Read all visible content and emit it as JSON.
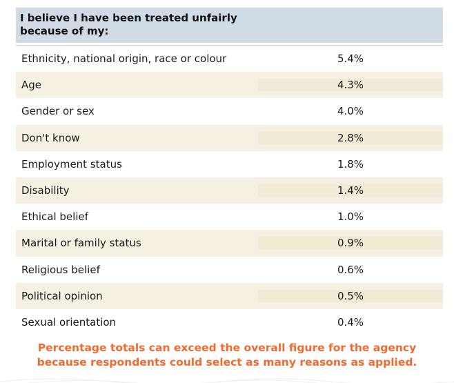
{
  "header": {
    "line1": "I believe I have been treated unfairly",
    "line2": "because of my:"
  },
  "rows": [
    {
      "label": "Ethnicity, national origin, race or colour",
      "value": "5.4%"
    },
    {
      "label": "Age",
      "value": "4.3%"
    },
    {
      "label": "Gender or sex",
      "value": "4.0%"
    },
    {
      "label": "Don't know",
      "value": "2.8%"
    },
    {
      "label": "Employment status",
      "value": "1.8%"
    },
    {
      "label": "Disability",
      "value": "1.4%"
    },
    {
      "label": "Ethical belief",
      "value": "1.0%"
    },
    {
      "label": "Marital or family status",
      "value": "0.9%"
    },
    {
      "label": "Religious belief",
      "value": "0.6%"
    },
    {
      "label": "Political opinion",
      "value": "0.5%"
    },
    {
      "label": "Sexual orientation",
      "value": "0.4%"
    }
  ],
  "note": {
    "line1": "Percentage totals can exceed the overall figure for the agency",
    "line2": "because respondents could select as many reasons as applied."
  },
  "colors": {
    "header_bg": "#cfdbe5",
    "shaded_row_bg": "#f6f0e2",
    "note_text": "#f26a2e"
  }
}
